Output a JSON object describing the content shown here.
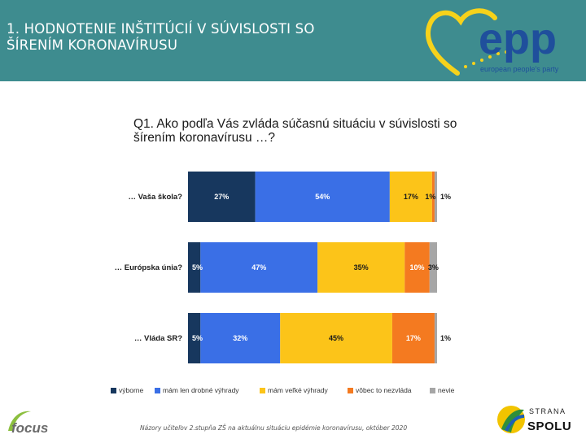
{
  "header": {
    "title_line1": "1.   HODNOTENIE INŠTITÚCIÍ V SÚVISLOSTI SO",
    "title_line2": "ŠÍRENÍM KORONAVÍRUSU"
  },
  "logos": {
    "epp_wordmark": "epp",
    "epp_subtitle": "european people's party",
    "focus_wordmark": "focus",
    "spolu_top": "STRANA",
    "spolu_main": "SPOLU"
  },
  "question": "Q1. Ako podľa Vás zvláda súčasnú situáciu v súvislosti so šírením koronavírusu …?",
  "source": "Názory učiteľov 2.stupňa ZŠ na aktuálnu situáciu epidémie koronavírusu, október 2020",
  "colors": {
    "header_bg": "#3e8c8f",
    "series": [
      "#17375e",
      "#3a6fe6",
      "#fcc419",
      "#f47a20",
      "#a6a6a6"
    ]
  },
  "chart_data": {
    "type": "bar",
    "orientation": "horizontal",
    "stacked": true,
    "percent": true,
    "categories": [
      "… Vaša škola?",
      "… Európska únia?",
      "… Vláda SR?"
    ],
    "series": [
      {
        "name": "výborne",
        "values": [
          27,
          5,
          5
        ]
      },
      {
        "name": "mám len drobné výhrady",
        "values": [
          54,
          47,
          32
        ]
      },
      {
        "name": "mám veľké výhrady",
        "values": [
          17,
          35,
          45
        ]
      },
      {
        "name": "vôbec to nezvláda",
        "values": [
          1,
          10,
          17
        ]
      },
      {
        "name": "nevie",
        "values": [
          1,
          3,
          1
        ]
      }
    ],
    "data_labels": [
      [
        "27%",
        "54%",
        "17%",
        "1%",
        "1%"
      ],
      [
        "5%",
        "47%",
        "35%",
        "10%",
        "3%"
      ],
      [
        "5%",
        "32%",
        "45%",
        "17%",
        "1%"
      ]
    ],
    "xlim": [
      0,
      100
    ],
    "legend_position": "bottom"
  }
}
